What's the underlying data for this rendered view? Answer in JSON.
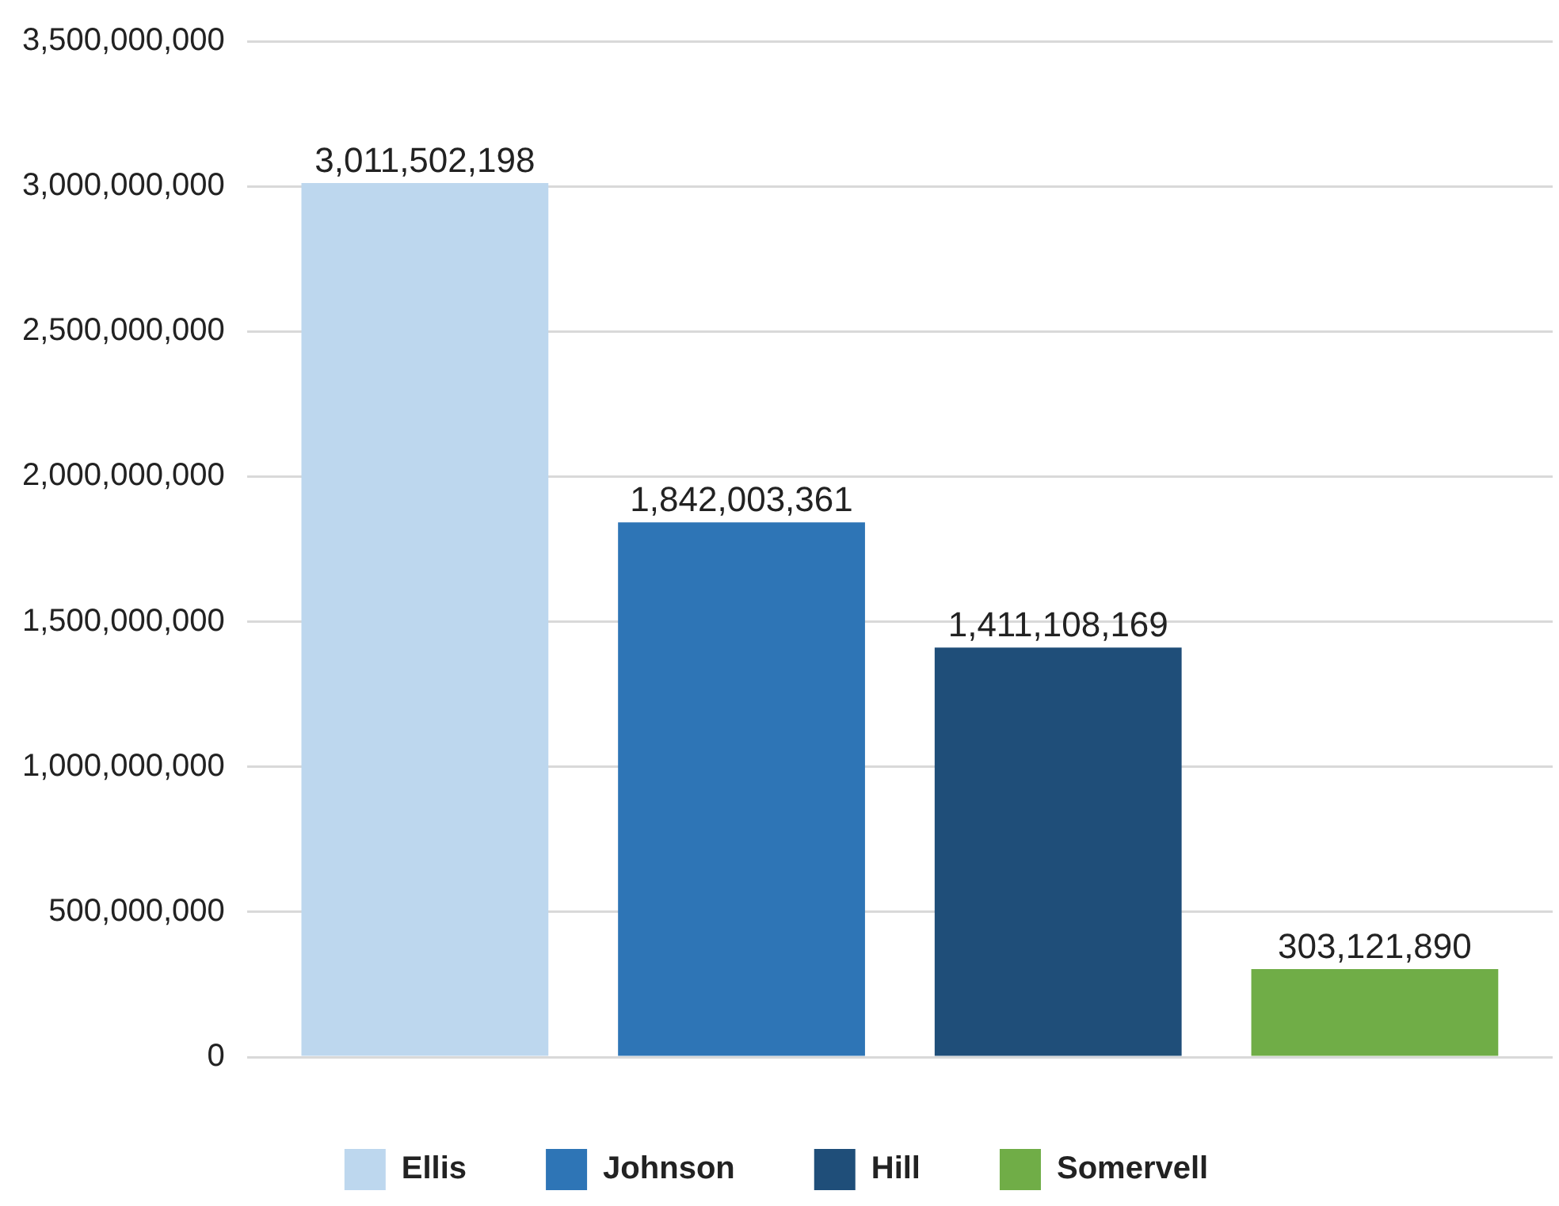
{
  "chart_data": {
    "type": "bar",
    "categories": [
      null
    ],
    "series": [
      {
        "name": "Ellis",
        "color": "#bdd7ee",
        "values": [
          3011502198
        ],
        "value_labels": [
          "3,011,502,198"
        ]
      },
      {
        "name": "Johnson",
        "color": "#2e75b6",
        "values": [
          1842003361
        ],
        "value_labels": [
          "1,842,003,361"
        ]
      },
      {
        "name": "Hill",
        "color": "#1f4e79",
        "values": [
          1411108169
        ],
        "value_labels": [
          "1,411,108,169"
        ]
      },
      {
        "name": "Somervell",
        "color": "#70ad47",
        "values": [
          303121890
        ],
        "value_labels": [
          "303,121,890"
        ]
      }
    ],
    "ylim": [
      0,
      3500000000
    ],
    "yticks": [
      0,
      {
        "value": 500000000,
        "label": "500,000,000"
      },
      {
        "value": 1000000000,
        "label": "1,000,000,000"
      },
      {
        "value": 1500000000,
        "label": "1,500,000,000"
      },
      {
        "value": 2000000000,
        "label": "2,000,000,000"
      },
      {
        "value": 2500000000,
        "label": "2,500,000,000"
      },
      {
        "value": 3000000000,
        "label": "3,000,000,000"
      },
      {
        "value": 3500000000,
        "label": "3,500,000,000"
      }
    ],
    "grid": "y",
    "legend": "bottom"
  }
}
